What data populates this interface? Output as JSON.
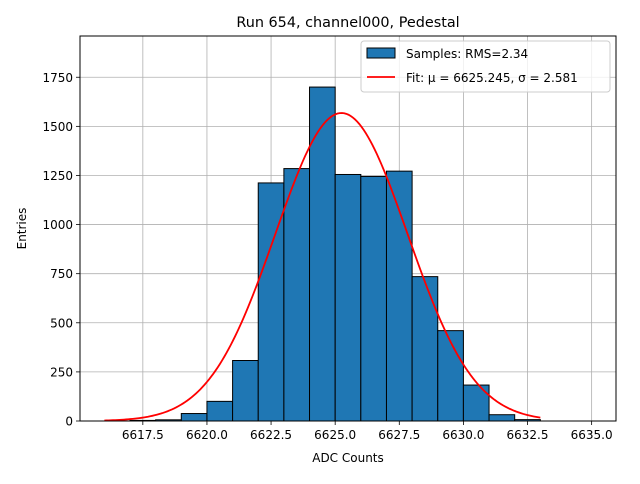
{
  "chart_data": {
    "type": "bar",
    "title": "Run 654, channel000, Pedestal",
    "xlabel": "ADC Counts",
    "ylabel": "Entries",
    "xlim": [
      6615.05,
      6635.95
    ],
    "ylim": [
      0,
      1960
    ],
    "grid": true,
    "x_ticks": [
      6617.5,
      6620.0,
      6622.5,
      6625.0,
      6627.5,
      6630.0,
      6632.5,
      6635.0
    ],
    "x_tick_labels": [
      "6617.5",
      "6620.0",
      "6622.5",
      "6625.0",
      "6627.5",
      "6630.0",
      "6632.5",
      "6635.0"
    ],
    "y_ticks": [
      0,
      250,
      500,
      750,
      1000,
      1250,
      1500,
      1750
    ],
    "y_tick_labels": [
      "0",
      "250",
      "500",
      "750",
      "1000",
      "1250",
      "1500",
      "1750"
    ],
    "histogram": {
      "name": "Samples: RMS=2.34",
      "bin_edges": [
        6617,
        6618,
        6619,
        6620,
        6621,
        6622,
        6623,
        6624,
        6625,
        6626,
        6627,
        6628,
        6629,
        6630,
        6631,
        6632,
        6633
      ],
      "values": [
        3,
        6,
        38,
        100,
        308,
        1212,
        1285,
        1700,
        1255,
        1245,
        1272,
        735,
        460,
        183,
        32,
        7
      ],
      "color": "#1f77b4",
      "edge_color": "#000000"
    },
    "fit": {
      "name": "Fit: μ = 6625.245, σ = 2.581",
      "mu": 6625.245,
      "sigma": 2.581,
      "amplitude": 1568,
      "x_range": [
        6616,
        6633
      ],
      "color": "#ff0000"
    },
    "legend": {
      "placement": "top-right",
      "entries": [
        "Samples: RMS=2.34",
        "Fit: μ = 6625.245, σ = 2.581"
      ]
    }
  }
}
